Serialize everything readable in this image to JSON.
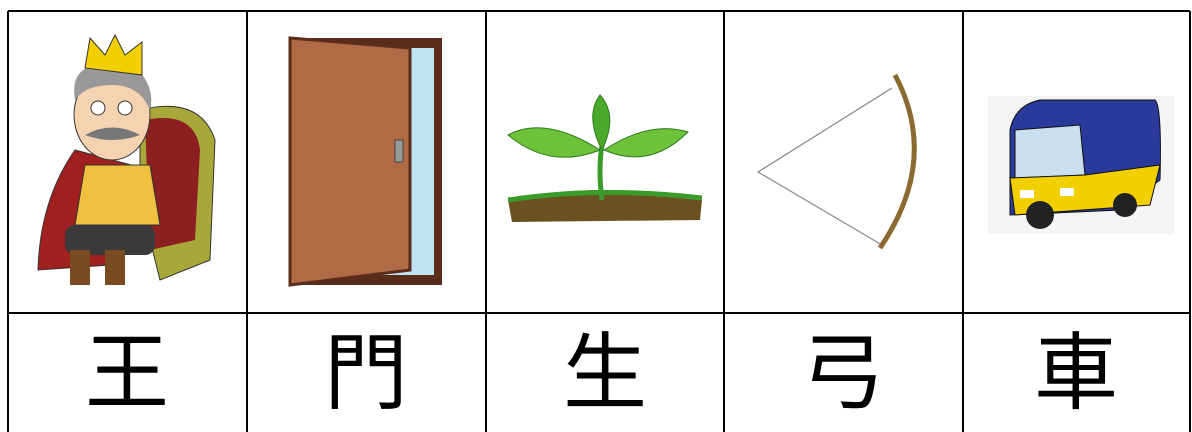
{
  "table": {
    "labels": [
      "王",
      "門",
      "生",
      "弓",
      "車"
    ]
  }
}
